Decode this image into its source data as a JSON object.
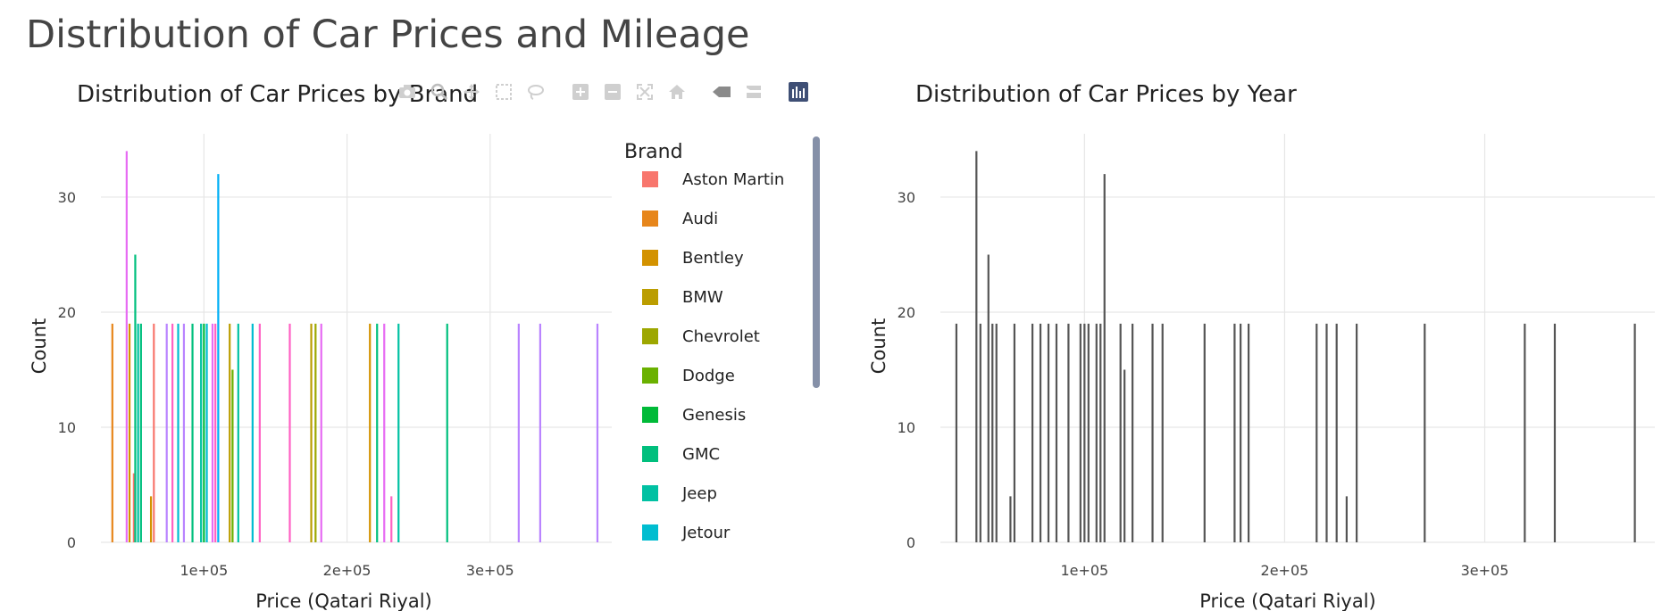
{
  "page_title": "Distribution of Car Prices and Mileage",
  "modebar": {
    "buttons": [
      {
        "name": "camera-icon"
      },
      {
        "name": "zoom-icon"
      },
      {
        "name": "pan-icon"
      },
      {
        "name": "box-select-icon"
      },
      {
        "name": "lasso-select-icon"
      },
      {
        "gap": true
      },
      {
        "name": "zoom-in-icon"
      },
      {
        "name": "zoom-out-icon"
      },
      {
        "name": "autoscale-icon"
      },
      {
        "name": "reset-axes-icon"
      },
      {
        "gap": true
      },
      {
        "name": "spike-lines-icon"
      },
      {
        "name": "compare-hover-icon"
      },
      {
        "gap": true
      },
      {
        "name": "plotly-logo-icon"
      }
    ]
  },
  "legend": {
    "title": "Brand",
    "items": [
      {
        "label": "Aston Martin",
        "color": "#F8766D"
      },
      {
        "label": "Audi",
        "color": "#E7861B"
      },
      {
        "label": "Bentley",
        "color": "#D39200"
      },
      {
        "label": "BMW",
        "color": "#BB9D00"
      },
      {
        "label": "Chevrolet",
        "color": "#9DA700"
      },
      {
        "label": "Dodge",
        "color": "#6AB100"
      },
      {
        "label": "Genesis",
        "color": "#00BA38"
      },
      {
        "label": "GMC",
        "color": "#00BF7D"
      },
      {
        "label": "Jeep",
        "color": "#00C1A3"
      },
      {
        "label": "Jetour",
        "color": "#00BDD0"
      }
    ]
  },
  "chart_data": [
    {
      "type": "bar",
      "title": "Distribution of Car Prices by Brand",
      "xlabel": "Price (Qatari Riyal)",
      "ylabel": "Count",
      "xlim": [
        28000,
        385000
      ],
      "ylim": [
        0,
        35.5
      ],
      "xticks": [
        {
          "value": 100000,
          "label": "1e+05"
        },
        {
          "value": 200000,
          "label": "2e+05"
        },
        {
          "value": 300000,
          "label": "3e+05"
        }
      ],
      "yticks": [
        {
          "value": 0,
          "label": "0"
        },
        {
          "value": 10,
          "label": "10"
        },
        {
          "value": 20,
          "label": "20"
        },
        {
          "value": 30,
          "label": "30"
        }
      ],
      "grid": true,
      "legend": "right",
      "bars": [
        {
          "x": 36000,
          "y": 19,
          "color": "#E7861B"
        },
        {
          "x": 46000,
          "y": 34,
          "color": "#E76BF3"
        },
        {
          "x": 48000,
          "y": 19,
          "color": "#D39200"
        },
        {
          "x": 51000,
          "y": 6,
          "color": "#F8766D"
        },
        {
          "x": 52000,
          "y": 25,
          "color": "#00BF7D"
        },
        {
          "x": 54000,
          "y": 19,
          "color": "#00C1A3"
        },
        {
          "x": 56000,
          "y": 19,
          "color": "#00BF7D"
        },
        {
          "x": 63000,
          "y": 4,
          "color": "#D39200"
        },
        {
          "x": 65000,
          "y": 19,
          "color": "#F8766D"
        },
        {
          "x": 74000,
          "y": 19,
          "color": "#B983FF"
        },
        {
          "x": 78000,
          "y": 19,
          "color": "#FF61C3"
        },
        {
          "x": 82000,
          "y": 19,
          "color": "#00BDD0"
        },
        {
          "x": 86000,
          "y": 19,
          "color": "#B983FF"
        },
        {
          "x": 92000,
          "y": 19,
          "color": "#00BF7D"
        },
        {
          "x": 98000,
          "y": 19,
          "color": "#00C1A3"
        },
        {
          "x": 100000,
          "y": 19,
          "color": "#00BA38"
        },
        {
          "x": 102000,
          "y": 19,
          "color": "#00BDD0"
        },
        {
          "x": 106000,
          "y": 19,
          "color": "#E76BF3"
        },
        {
          "x": 108000,
          "y": 19,
          "color": "#FF61C3"
        },
        {
          "x": 110000,
          "y": 32,
          "color": "#00B0F6"
        },
        {
          "x": 118000,
          "y": 19,
          "color": "#BB9D00"
        },
        {
          "x": 120000,
          "y": 15,
          "color": "#6AB100"
        },
        {
          "x": 124000,
          "y": 19,
          "color": "#00C1A3"
        },
        {
          "x": 134000,
          "y": 19,
          "color": "#00BDD0"
        },
        {
          "x": 139000,
          "y": 19,
          "color": "#FF61C3"
        },
        {
          "x": 160000,
          "y": 19,
          "color": "#FF61C3"
        },
        {
          "x": 175000,
          "y": 19,
          "color": "#BB9D00"
        },
        {
          "x": 178000,
          "y": 19,
          "color": "#9DA700"
        },
        {
          "x": 182000,
          "y": 19,
          "color": "#E76BF3"
        },
        {
          "x": 216000,
          "y": 19,
          "color": "#D39200"
        },
        {
          "x": 221000,
          "y": 19,
          "color": "#00BF7D"
        },
        {
          "x": 226000,
          "y": 19,
          "color": "#E76BF3"
        },
        {
          "x": 231000,
          "y": 4,
          "color": "#FF61C3"
        },
        {
          "x": 236000,
          "y": 19,
          "color": "#00C1A3"
        },
        {
          "x": 270000,
          "y": 19,
          "color": "#00BF7D"
        },
        {
          "x": 320000,
          "y": 19,
          "color": "#B983FF"
        },
        {
          "x": 335000,
          "y": 19,
          "color": "#B983FF"
        },
        {
          "x": 375000,
          "y": 19,
          "color": "#B983FF"
        }
      ]
    },
    {
      "type": "bar",
      "title": "Distribution of Car Prices by Year",
      "xlabel": "Price (Qatari Riyal)",
      "ylabel": "Count",
      "xlim": [
        28000,
        385000
      ],
      "ylim": [
        0,
        35.5
      ],
      "xticks": [
        {
          "value": 100000,
          "label": "1e+05"
        },
        {
          "value": 200000,
          "label": "2e+05"
        },
        {
          "value": 300000,
          "label": "3e+05"
        }
      ],
      "yticks": [
        {
          "value": 0,
          "label": "0"
        },
        {
          "value": 10,
          "label": "10"
        },
        {
          "value": 20,
          "label": "20"
        },
        {
          "value": 30,
          "label": "30"
        }
      ],
      "grid": true,
      "bar_color": "#555555",
      "bars": [
        {
          "x": 36000,
          "y": 19
        },
        {
          "x": 46000,
          "y": 34
        },
        {
          "x": 48000,
          "y": 19
        },
        {
          "x": 52000,
          "y": 25
        },
        {
          "x": 54000,
          "y": 19
        },
        {
          "x": 56000,
          "y": 19
        },
        {
          "x": 63000,
          "y": 4
        },
        {
          "x": 65000,
          "y": 19
        },
        {
          "x": 74000,
          "y": 19
        },
        {
          "x": 78000,
          "y": 19
        },
        {
          "x": 82000,
          "y": 19
        },
        {
          "x": 86000,
          "y": 19
        },
        {
          "x": 92000,
          "y": 19
        },
        {
          "x": 98000,
          "y": 19
        },
        {
          "x": 100000,
          "y": 19
        },
        {
          "x": 102000,
          "y": 19
        },
        {
          "x": 106000,
          "y": 19
        },
        {
          "x": 108000,
          "y": 19
        },
        {
          "x": 110000,
          "y": 32
        },
        {
          "x": 118000,
          "y": 19
        },
        {
          "x": 120000,
          "y": 15
        },
        {
          "x": 124000,
          "y": 19
        },
        {
          "x": 134000,
          "y": 19
        },
        {
          "x": 139000,
          "y": 19
        },
        {
          "x": 160000,
          "y": 19
        },
        {
          "x": 175000,
          "y": 19
        },
        {
          "x": 178000,
          "y": 19
        },
        {
          "x": 182000,
          "y": 19
        },
        {
          "x": 216000,
          "y": 19
        },
        {
          "x": 221000,
          "y": 19
        },
        {
          "x": 226000,
          "y": 19
        },
        {
          "x": 231000,
          "y": 4
        },
        {
          "x": 236000,
          "y": 19
        },
        {
          "x": 270000,
          "y": 19
        },
        {
          "x": 320000,
          "y": 19
        },
        {
          "x": 335000,
          "y": 19
        },
        {
          "x": 375000,
          "y": 19
        }
      ]
    }
  ]
}
